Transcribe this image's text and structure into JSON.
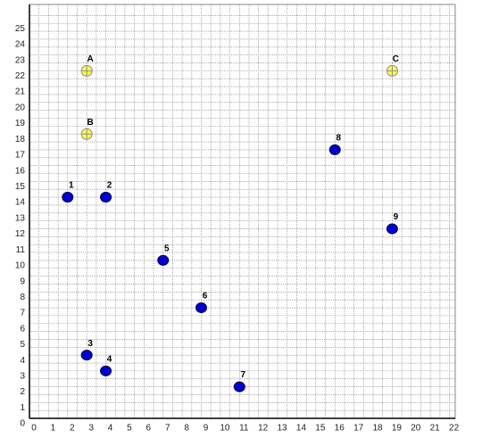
{
  "chart_data": {
    "type": "scatter",
    "xlim": [
      0,
      22.3
    ],
    "ylim": [
      0,
      26.2
    ],
    "xticks": [
      0,
      1,
      2,
      3,
      4,
      5,
      6,
      7,
      8,
      9,
      10,
      11,
      12,
      13,
      14,
      15,
      16,
      17,
      18,
      19,
      20,
      21,
      22
    ],
    "yticks": [
      0,
      1,
      2,
      3,
      4,
      5,
      6,
      7,
      8,
      9,
      10,
      11,
      12,
      13,
      14,
      15,
      16,
      17,
      18,
      19,
      20,
      21,
      22,
      23,
      24,
      25
    ],
    "grid": true,
    "minor_grid": true,
    "series": [
      {
        "color": "#0000cc",
        "marker": "dot",
        "x": [
          2,
          4,
          3,
          4,
          7,
          9,
          11,
          16,
          19
        ],
        "values": [
          14,
          14,
          4,
          3,
          10,
          7,
          2,
          17,
          12
        ],
        "labels": [
          "1",
          "2",
          "3",
          "4",
          "5",
          "6",
          "7",
          "8",
          "9"
        ]
      },
      {
        "color": "#ffff55",
        "marker": "crosshair",
        "x": [
          3,
          3,
          19
        ],
        "values": [
          22,
          18,
          22
        ],
        "labels": [
          "A",
          "B",
          "C"
        ]
      }
    ]
  }
}
